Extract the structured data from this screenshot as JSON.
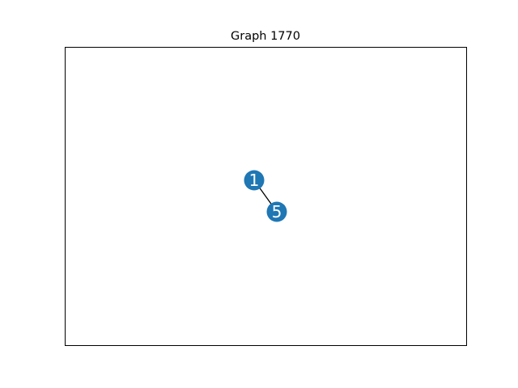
{
  "title": "Graph 1770",
  "colors": {
    "node_fill": "#1f77b4",
    "node_label": "#ffffff",
    "edge": "#000000",
    "frame": "#000000",
    "background": "#ffffff"
  },
  "graph": {
    "nodes": [
      {
        "id": "1",
        "label": "1"
      },
      {
        "id": "5",
        "label": "5"
      }
    ],
    "edges": [
      {
        "source": "1",
        "target": "5"
      }
    ]
  }
}
